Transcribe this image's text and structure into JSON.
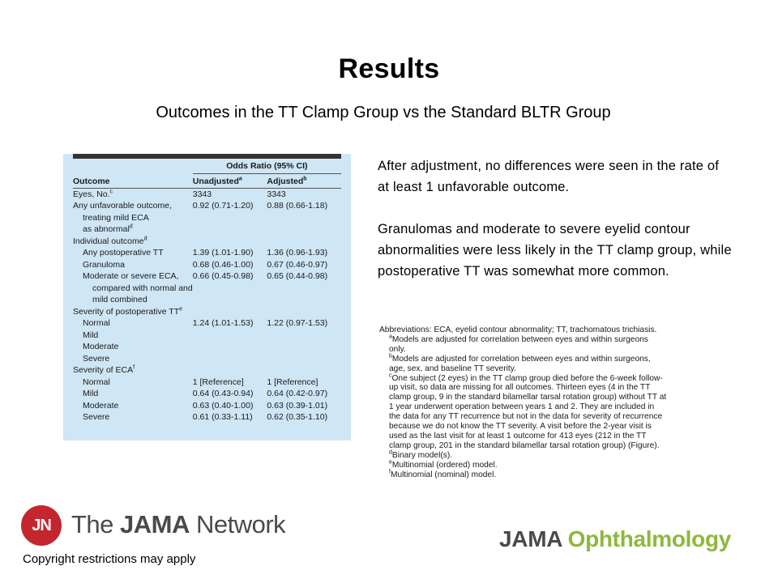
{
  "slide": {
    "title": "Results",
    "subtitle": "Outcomes in the TT Clamp Group vs the Standard BLTR Group"
  },
  "table": {
    "group_header": "Odds Ratio (95% CI)",
    "col_outcome": "Outcome",
    "col_unadjusted": "Unadjusted",
    "col_unadjusted_sup": "a",
    "col_adjusted": "Adjusted",
    "col_adjusted_sup": "b",
    "rows": [
      {
        "label": "Eyes, No.",
        "sup": "c",
        "unadj": "3343",
        "adj": "3343",
        "indent": 0
      },
      {
        "label": "Any unfavorable outcome,",
        "sup": "",
        "unadj": "0.92 (0.71-1.20)",
        "adj": "0.88 (0.66-1.18)",
        "indent": 0
      },
      {
        "label": "treating mild ECA",
        "sup": "",
        "unadj": "",
        "adj": "",
        "indent": 1
      },
      {
        "label": "as abnormal",
        "sup": "d",
        "unadj": "",
        "adj": "",
        "indent": 1
      },
      {
        "label": "Individual outcome",
        "sup": "d",
        "unadj": "",
        "adj": "",
        "indent": 0
      },
      {
        "label": "Any postoperative TT",
        "sup": "",
        "unadj": "1.39 (1.01-1.90)",
        "adj": "1.36 (0.96-1.93)",
        "indent": 1
      },
      {
        "label": "Granuloma",
        "sup": "",
        "unadj": "0.68 (0.46-1.00)",
        "adj": "0.67 (0.46-0.97)",
        "indent": 1
      },
      {
        "label": "Moderate or severe ECA,",
        "sup": "",
        "unadj": "0.66 (0.45-0.98)",
        "adj": "0.65 (0.44-0.98)",
        "indent": 1
      },
      {
        "label": "compared with normal and",
        "sup": "",
        "unadj": "",
        "adj": "",
        "indent": 2
      },
      {
        "label": "mild combined",
        "sup": "",
        "unadj": "",
        "adj": "",
        "indent": 2
      },
      {
        "label": "Severity of postoperative TT",
        "sup": "e",
        "unadj": "",
        "adj": "",
        "indent": 0
      },
      {
        "label": "Normal",
        "sup": "",
        "unadj": "1.24 (1.01-1.53)",
        "adj": "1.22 (0.97-1.53)",
        "indent": 1
      },
      {
        "label": "Mild",
        "sup": "",
        "unadj": "",
        "adj": "",
        "indent": 1
      },
      {
        "label": "Moderate",
        "sup": "",
        "unadj": "",
        "adj": "",
        "indent": 1
      },
      {
        "label": "Severe",
        "sup": "",
        "unadj": "",
        "adj": "",
        "indent": 1
      },
      {
        "label": "Severity of ECA",
        "sup": "f",
        "unadj": "",
        "adj": "",
        "indent": 0
      },
      {
        "label": "Normal",
        "sup": "",
        "unadj": "1 [Reference]",
        "adj": "1 [Reference]",
        "indent": 1
      },
      {
        "label": "Mild",
        "sup": "",
        "unadj": "0.64 (0.43-0.94)",
        "adj": "0.64 (0.42-0.97)",
        "indent": 1
      },
      {
        "label": "Moderate",
        "sup": "",
        "unadj": "0.63 (0.40-1.00)",
        "adj": "0.63 (0.39-1.01)",
        "indent": 1
      },
      {
        "label": "Severe",
        "sup": "",
        "unadj": "0.61 (0.33-1.11)",
        "adj": "0.62 (0.35-1.10)",
        "indent": 1
      }
    ]
  },
  "summary": {
    "p1": "After adjustment, no differences were seen in the rate of at least 1 unfavorable outcome.",
    "p2": "Granulomas and moderate to severe eyelid contour abnormalities were less likely in the TT clamp group, while postoperative TT was somewhat more common."
  },
  "footnotes": {
    "abbrev": "Abbreviations: ECA, eyelid contour abnormality; TT, trachomatous trichiasis.",
    "a_sup": "a",
    "a": "Models are adjusted for correlation between eyes and within surgeons only.",
    "b_sup": "b",
    "b": "Models are adjusted for correlation between eyes and within surgeons, age, sex, and baseline TT severity.",
    "c_sup": "c",
    "c": "One subject (2 eyes) in the TT clamp group died before the 6-week follow-up visit, so data are missing for all outcomes. Thirteen eyes (4 in the TT clamp group, 9 in the standard bilamellar tarsal rotation group) without TT at 1 year underwent operation between years 1 and 2. They are included in the data for any TT recurrence but not in the data for severity of recurrence because we do not know the TT severity. A visit before the 2-year visit is used as the last visit for at least 1 outcome for 413 eyes (212 in the TT clamp group, 201 in the standard bilamellar tarsal rotation group) (Figure).",
    "d_sup": "d",
    "d": "Binary model(s).",
    "e_sup": "e",
    "e": "Multinomial (ordered) model.",
    "f_sup": "f",
    "f": "Multinomial (nominal) model."
  },
  "branding": {
    "jn_mark": "JN",
    "network_the": "The ",
    "network_jama": "JAMA",
    "network_rest": " Network",
    "copyright": "Copyright restrictions may apply",
    "journal_jama": "JAMA",
    "journal_oph": "Ophthalmology"
  }
}
